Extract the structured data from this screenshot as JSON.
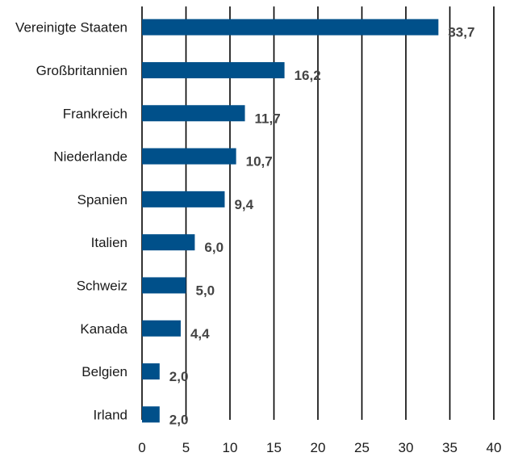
{
  "chart_data": {
    "type": "bar",
    "orientation": "horizontal",
    "categories": [
      "Vereinigte Staaten",
      "Großbritannien",
      "Frankreich",
      "Niederlande",
      "Spanien",
      "Italien",
      "Schweiz",
      "Kanada",
      "Belgien",
      "Irland"
    ],
    "values": [
      33.7,
      16.2,
      11.7,
      10.7,
      9.4,
      6.0,
      5.0,
      4.4,
      2.0,
      2.0
    ],
    "value_labels": [
      "33,7",
      "16,2",
      "11,7",
      "10,7",
      "9,4",
      "6,0",
      "5,0",
      "4,4",
      "2,0",
      "2,0"
    ],
    "x_ticks": [
      "0",
      "5",
      "10",
      "15",
      "20",
      "25",
      "30",
      "35",
      "40"
    ],
    "xlim": [
      0,
      40
    ],
    "grid": true,
    "title": "",
    "xlabel": "",
    "ylabel": "",
    "colors": {
      "bar": "#00508a",
      "grid": "#000000",
      "value_label": "#444444"
    }
  }
}
